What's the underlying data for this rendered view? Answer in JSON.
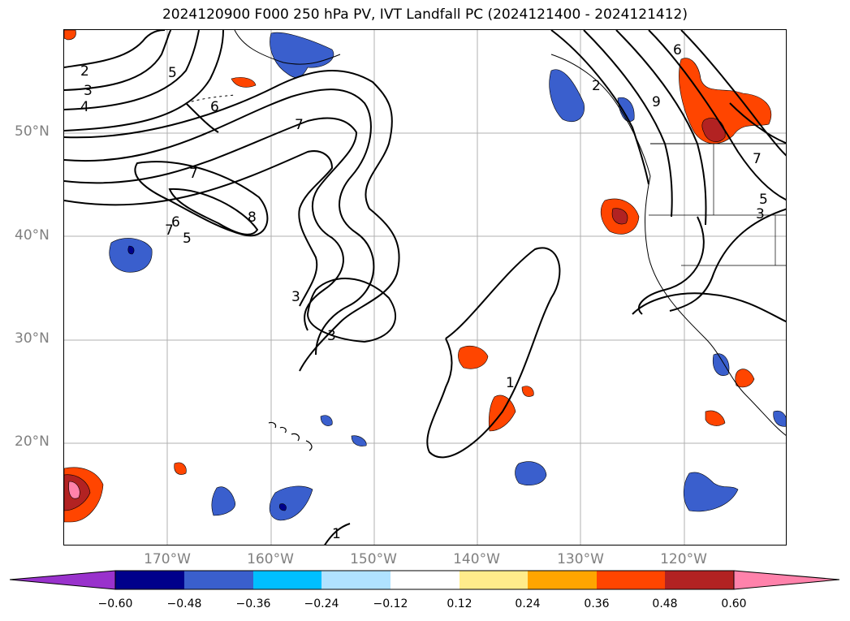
{
  "title": "2024120900 F000 250 hPa PV, IVT Landfall PC (2024121400 - 2024121412)",
  "lat_labels": [
    "50°N",
    "40°N",
    "30°N",
    "20°N"
  ],
  "lon_labels": [
    "170°W",
    "160°W",
    "150°W",
    "140°W",
    "130°W",
    "120°W"
  ],
  "contour_labels": [
    "2",
    "3",
    "4",
    "5",
    "6",
    "7",
    "8",
    "7",
    "5",
    "6",
    "7",
    "3",
    "3",
    "2",
    "6",
    "9",
    "7",
    "5",
    "3",
    "1",
    "1"
  ],
  "colorbar": {
    "ticks": [
      "−0.60",
      "−0.48",
      "−0.36",
      "−0.24",
      "−0.12",
      "0.12",
      "0.24",
      "0.36",
      "0.48",
      "0.60"
    ],
    "colors": [
      "#9932cc",
      "#00008b",
      "#3a5fcd",
      "#00bfff",
      "#b0e2ff",
      "#ffffff",
      "#ffec8b",
      "#ffa500",
      "#ff4500",
      "#b22222",
      "#ff82ab"
    ]
  },
  "palette": {
    "contour": "#000000",
    "grid": "#b0b0b0",
    "coast": "#000000",
    "label": "#808080"
  }
}
